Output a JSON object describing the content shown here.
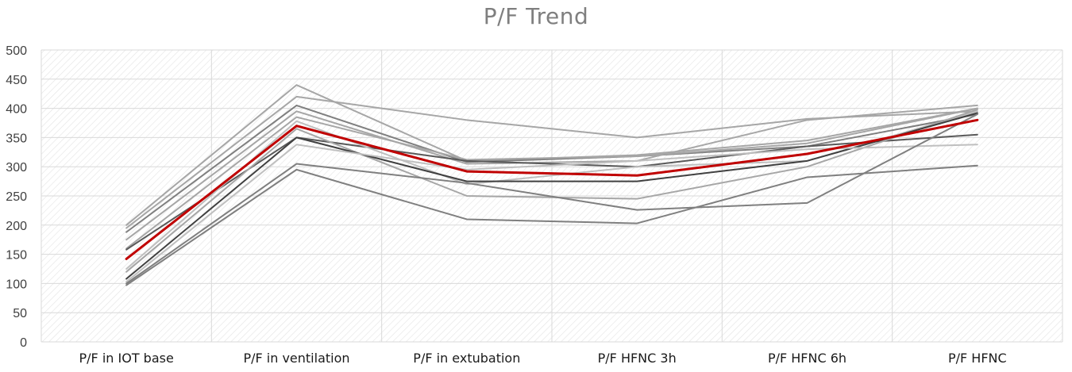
{
  "chart_data": {
    "type": "line",
    "title": "P/F Trend",
    "categories": [
      "P/F in IOT base",
      "P/F in ventilation",
      "P/F in extubation",
      "P/F HFNC 3h",
      "P/F HFNC 6h",
      "P/F HFNC"
    ],
    "ylim": [
      0,
      500
    ],
    "yticks": [
      0,
      50,
      100,
      150,
      200,
      250,
      300,
      350,
      400,
      450,
      500
    ],
    "grid": true,
    "legend": "none",
    "series": [
      {
        "values": [
          200,
          440,
          310,
          320,
          345,
          400
        ],
        "color": "#a6a6a6"
      },
      {
        "values": [
          195,
          420,
          380,
          350,
          382,
          395
        ],
        "color": "#a6a6a6"
      },
      {
        "values": [
          188,
          405,
          308,
          318,
          335,
          390
        ],
        "color": "#7f7f7f"
      },
      {
        "values": [
          175,
          395,
          305,
          310,
          380,
          405
        ],
        "color": "#a6a6a6"
      },
      {
        "values": [
          160,
          385,
          312,
          318,
          340,
          400
        ],
        "color": "#a6a6a6"
      },
      {
        "values": [
          158,
          350,
          310,
          300,
          335,
          355
        ],
        "color": "#595959"
      },
      {
        "values": [
          125,
          378,
          270,
          300,
          310,
          395
        ],
        "color": "#bfbfbf"
      },
      {
        "values": [
          120,
          365,
          250,
          245,
          300,
          398
        ],
        "color": "#a6a6a6"
      },
      {
        "values": [
          108,
          350,
          275,
          275,
          310,
          392
        ],
        "color": "#404040"
      },
      {
        "values": [
          103,
          338,
          295,
          310,
          330,
          338
        ],
        "color": "#bfbfbf"
      },
      {
        "values": [
          100,
          305,
          272,
          226,
          238,
          390
        ],
        "color": "#7f7f7f"
      },
      {
        "values": [
          97,
          295,
          210,
          203,
          282,
          302
        ],
        "color": "#7f7f7f"
      },
      {
        "values": [
          142,
          370,
          292,
          285,
          322,
          380
        ],
        "color": "#c00000",
        "highlight": true
      }
    ]
  }
}
